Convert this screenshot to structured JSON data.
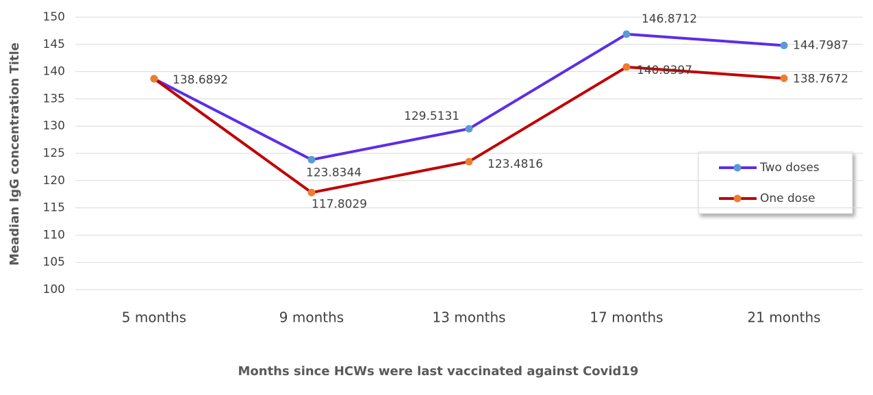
{
  "chart_data": {
    "type": "line",
    "categories": [
      "5 months",
      "9 months",
      "13 months",
      "17 months",
      "21 months"
    ],
    "series": [
      {
        "name": "Two doses",
        "color": "#5b2ee8",
        "marker_color": "#5b9bd5",
        "values": [
          138.6892,
          123.8344,
          129.5131,
          146.8712,
          144.7987
        ]
      },
      {
        "name": "One dose",
        "color": "#c00000",
        "marker_color": "#ed7d31",
        "values": [
          138.6892,
          117.8029,
          123.4816,
          140.8397,
          138.7672
        ],
        "value_labels": [
          null,
          "117.8029",
          "123.4816",
          "140.8397",
          "138.7672"
        ]
      }
    ],
    "ylim": [
      100,
      150
    ],
    "yticks": [
      100,
      105,
      110,
      115,
      120,
      125,
      130,
      135,
      140,
      145,
      150
    ],
    "ylabel": "Meadian IgG concentration Title",
    "xlabel": "Months since HCWs were last vaccinated against Covid19",
    "grid": true,
    "legend": "right"
  }
}
